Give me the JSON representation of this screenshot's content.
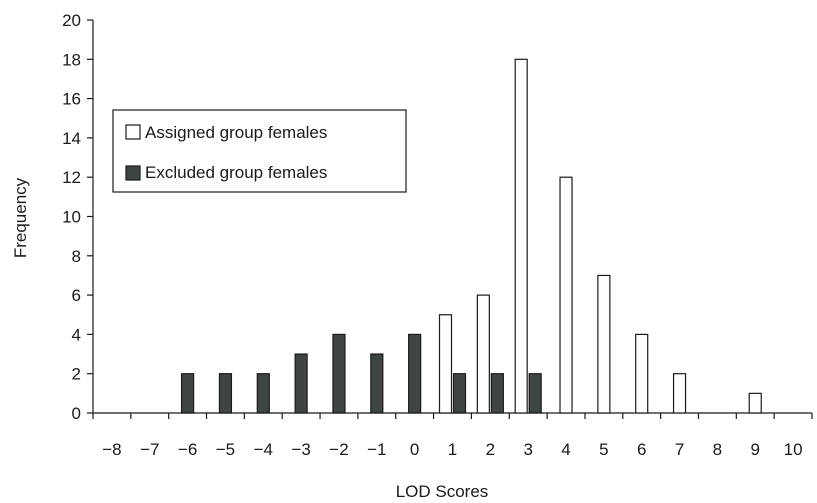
{
  "chart_data": {
    "type": "bar",
    "xlabel": "LOD Scores",
    "ylabel": "Frequency",
    "ylim": [
      0,
      20
    ],
    "yticks": [
      0,
      2,
      4,
      6,
      8,
      10,
      12,
      14,
      16,
      18,
      20
    ],
    "categories": [
      "−8",
      "−7",
      "−6",
      "−5",
      "−4",
      "−3",
      "−2",
      "−1",
      "0",
      "1",
      "2",
      "3",
      "4",
      "5",
      "6",
      "7",
      "8",
      "9",
      "10"
    ],
    "series": [
      {
        "name": "Assigned group females",
        "color": "#ffffff",
        "values": [
          0,
          0,
          0,
          0,
          0,
          0,
          0,
          0,
          0,
          5,
          6,
          18,
          12,
          7,
          4,
          2,
          0,
          1,
          0
        ]
      },
      {
        "name": "Excluded group females",
        "color": "#3f4545",
        "values": [
          0,
          0,
          2,
          2,
          2,
          3,
          4,
          3,
          4,
          2,
          2,
          2,
          0,
          0,
          0,
          0,
          0,
          0,
          0
        ]
      }
    ],
    "legend_position": "left",
    "grid": false
  }
}
